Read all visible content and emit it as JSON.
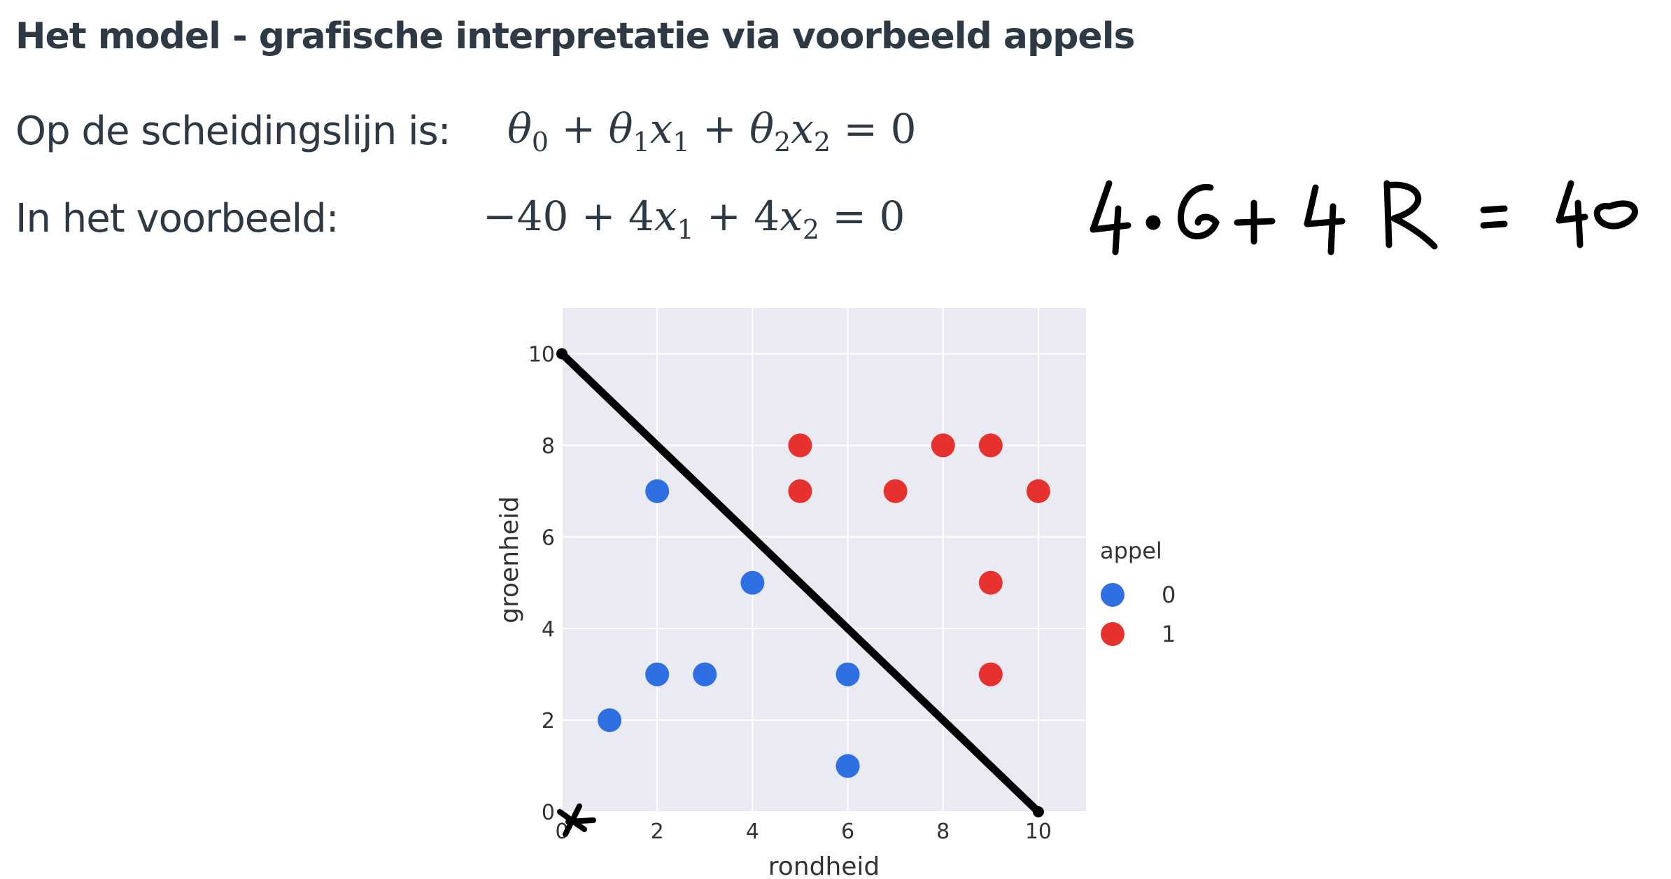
{
  "heading": "Het model - grafische interpretatie via voorbeeld appels",
  "line1": {
    "label": "Op de scheidingslijn is:"
  },
  "line2": {
    "label": "In het voorbeeld:"
  },
  "equation1": {
    "theta": "θ",
    "s0": "0",
    "s1": "1",
    "s2": "2",
    "x": "x",
    "plus": " + ",
    "equals": " = ",
    "rhs": "0"
  },
  "equation2": {
    "c0": "−40",
    "plus": " + ",
    "c1": "4",
    "c2": "4",
    "x": "x",
    "s1": "1",
    "s2": "2",
    "equals": " = ",
    "rhs": "0"
  },
  "colors": {
    "blue": "#2f6fe4",
    "red": "#e6312e",
    "plot_bg": "#eaeaf2",
    "grid": "#ffffff",
    "ink": "#000000"
  },
  "chart_data": {
    "type": "scatter",
    "xlabel": "rondheid",
    "ylabel": "groenheid",
    "xlim": [
      0,
      11
    ],
    "ylim": [
      0,
      11
    ],
    "xticks": [
      0,
      2,
      4,
      6,
      8,
      10
    ],
    "yticks": [
      0,
      2,
      4,
      6,
      8,
      10
    ],
    "grid": true,
    "legend": {
      "title": "appel",
      "position": "right"
    },
    "series": [
      {
        "name": "0",
        "color": "#2f6fe4",
        "points": [
          [
            2,
            7
          ],
          [
            4,
            5
          ],
          [
            2,
            3
          ],
          [
            3,
            3
          ],
          [
            1,
            2
          ],
          [
            6,
            3
          ],
          [
            6,
            1
          ]
        ]
      },
      {
        "name": "1",
        "color": "#e6312e",
        "points": [
          [
            5,
            8
          ],
          [
            8,
            8
          ],
          [
            9,
            8
          ],
          [
            5,
            7
          ],
          [
            7,
            7
          ],
          [
            10,
            7
          ],
          [
            9,
            5
          ],
          [
            9,
            3
          ]
        ]
      }
    ],
    "decision_line": {
      "from": [
        0,
        10
      ],
      "to": [
        10,
        0
      ]
    }
  }
}
